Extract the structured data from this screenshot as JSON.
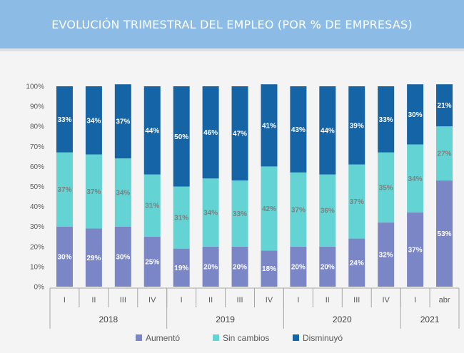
{
  "header": {
    "title": "EVOLUCIÓN TRIMESTRAL DEL EMPLEO (POR % DE EMPRESAS)"
  },
  "colors": {
    "aumento": "#7a86c6",
    "sin_cambios": "#63d3d3",
    "disminuyo": "#1464a6",
    "header": "#8cbce6"
  },
  "chart_data": {
    "type": "bar",
    "stacked": true,
    "title": "EVOLUCIÓN TRIMESTRAL DEL EMPLEO (POR % DE EMPRESAS)",
    "categories": [
      "I",
      "II",
      "III",
      "IV",
      "I",
      "II",
      "III",
      "IV",
      "I",
      "II",
      "III",
      "IV",
      "I",
      "abr"
    ],
    "groups": [
      {
        "label": "2018",
        "count": 4
      },
      {
        "label": "2019",
        "count": 4
      },
      {
        "label": "2020",
        "count": 4
      },
      {
        "label": "2021",
        "count": 2
      }
    ],
    "series": [
      {
        "name": "Aumentó",
        "values": [
          30,
          29,
          30,
          25,
          19,
          20,
          20,
          18,
          20,
          20,
          24,
          32,
          37,
          53
        ]
      },
      {
        "name": "Sin cambios",
        "values": [
          37,
          37,
          34,
          31,
          31,
          34,
          33,
          42,
          37,
          36,
          37,
          35,
          34,
          27
        ]
      },
      {
        "name": "Disminuyó",
        "values": [
          33,
          34,
          37,
          44,
          50,
          46,
          47,
          41,
          43,
          44,
          39,
          33,
          30,
          21
        ]
      }
    ],
    "ylim": [
      0,
      100
    ],
    "yticks": [
      "0%",
      "10%",
      "20%",
      "30%",
      "40%",
      "50%",
      "60%",
      "70%",
      "80%",
      "90%",
      "100%"
    ],
    "grid": false,
    "legend": "bottom"
  }
}
